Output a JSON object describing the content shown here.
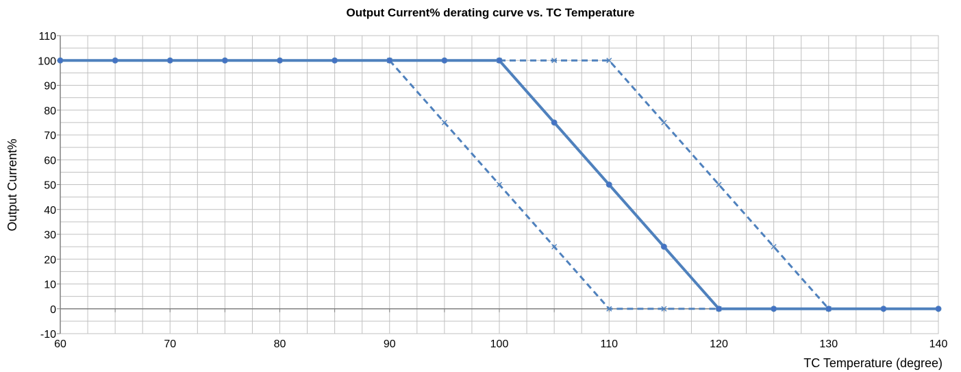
{
  "chart_data": {
    "type": "line",
    "title": "Output Current% derating curve vs. TC Temperature",
    "xlabel": "TC Temperature (degree)",
    "ylabel": "Output Current%",
    "xlim": [
      60,
      140
    ],
    "ylim": [
      -10,
      110
    ],
    "xticks": [
      60,
      70,
      80,
      90,
      100,
      110,
      120,
      130,
      140
    ],
    "yticks": [
      -10,
      0,
      10,
      20,
      30,
      40,
      50,
      60,
      70,
      80,
      90,
      100,
      110
    ],
    "grid": true,
    "legend": "none",
    "colors": {
      "series": "#4f81bd",
      "solid_marker": "#4472c4",
      "grid": "#c0c0c0",
      "axis": "#808080"
    },
    "series": [
      {
        "style": "dashed",
        "marker": "x",
        "x": [
          90,
          95,
          100,
          105,
          110,
          115,
          120
        ],
        "y": [
          100,
          75,
          50,
          25,
          0,
          0,
          0
        ]
      },
      {
        "style": "solid",
        "marker": "circle",
        "x": [
          60,
          65,
          70,
          75,
          80,
          85,
          90,
          95,
          100,
          105,
          110,
          115,
          120,
          125,
          130,
          135,
          140
        ],
        "y": [
          100,
          100,
          100,
          100,
          100,
          100,
          100,
          100,
          100,
          75,
          50,
          25,
          0,
          0,
          0,
          0,
          0
        ]
      },
      {
        "style": "dashed",
        "marker": "x",
        "x": [
          100,
          105,
          110,
          115,
          120,
          125,
          130
        ],
        "y": [
          100,
          100,
          100,
          75,
          50,
          25,
          0
        ]
      }
    ]
  }
}
